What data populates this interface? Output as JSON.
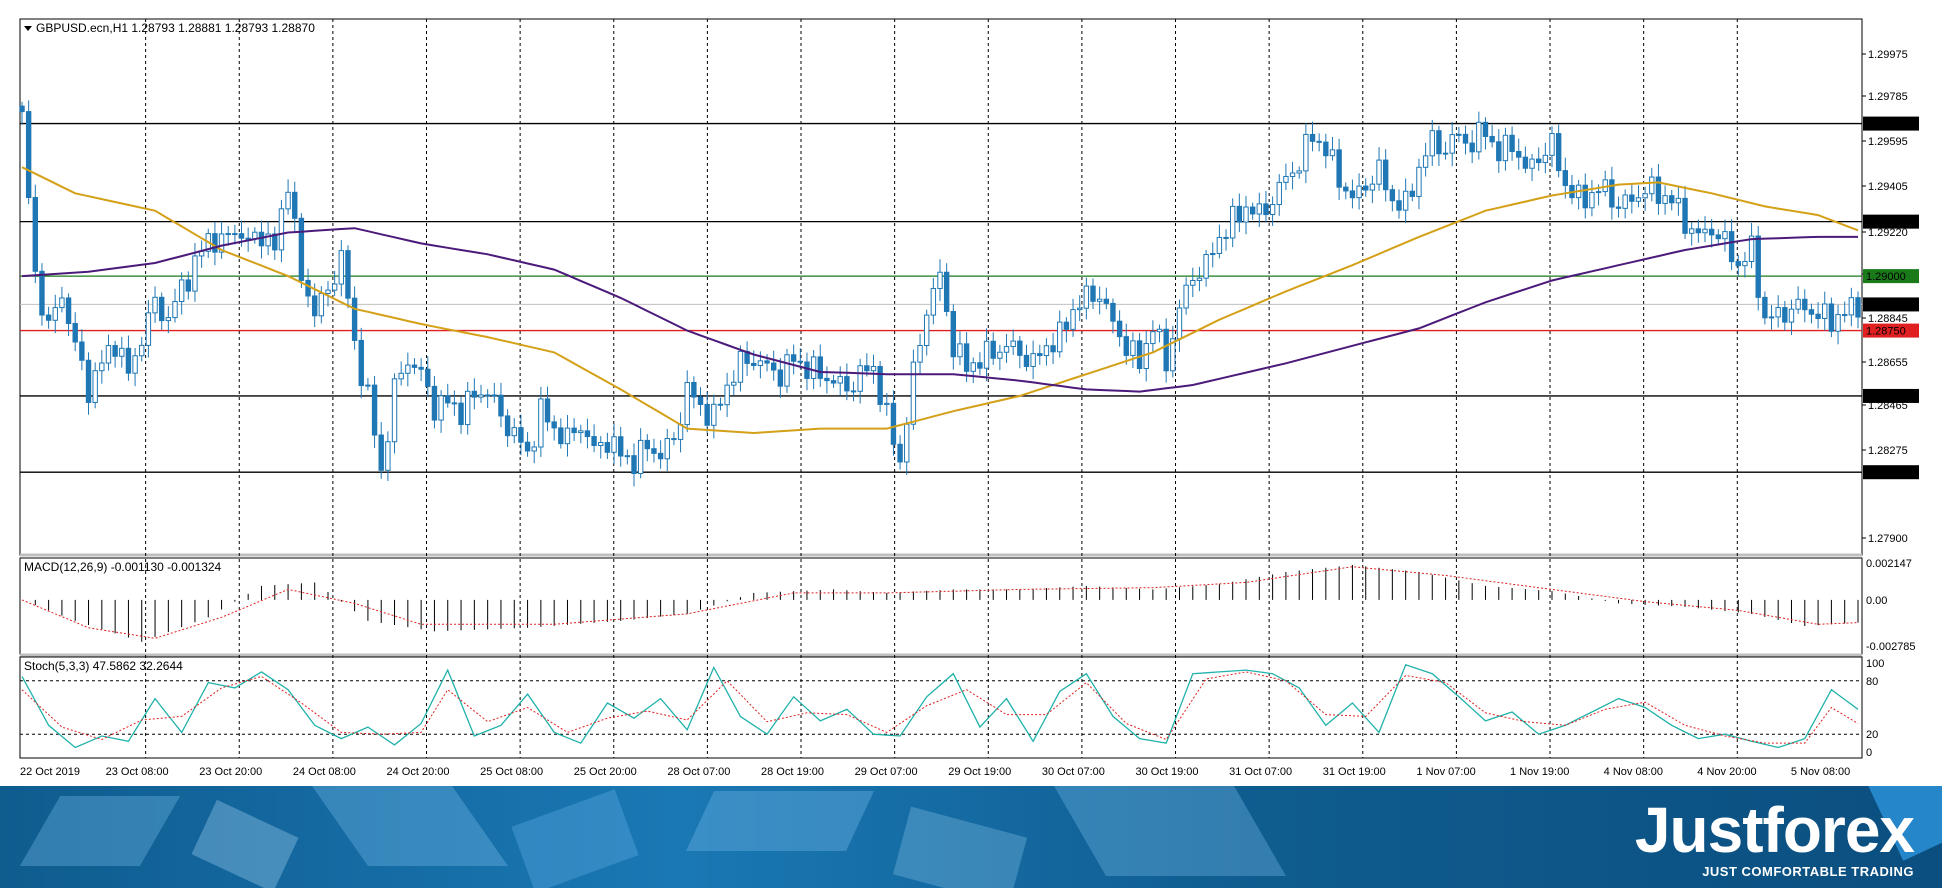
{
  "chart_data": {
    "type": "candlestick",
    "symbol_header": "GBPUSD.ecn,H1  1.28793 1.28881 1.28793 1.28870",
    "price_axis": {
      "ylim": [
        1.2772,
        1.3018
      ],
      "ticks": [
        "1.29975",
        "1.29785",
        "1.29595",
        "1.29405",
        "1.29220",
        "1.29030",
        "1.28845",
        "1.28655",
        "1.28465",
        "1.28275",
        "1.27900"
      ]
    },
    "horizontal_levels": [
      {
        "value": 1.297,
        "label": "1.29700",
        "color": "#000000"
      },
      {
        "value": 1.2925,
        "label": "1.29250",
        "color": "#000000"
      },
      {
        "value": 1.29,
        "label": "1.29000",
        "color": "#1a7a1a"
      },
      {
        "value": 1.2875,
        "label": "1.28750",
        "color": "#e02020"
      },
      {
        "value": 1.2845,
        "label": "1.28450",
        "color": "#000000"
      },
      {
        "value": 1.281,
        "label": "1.28100",
        "color": "#000000"
      }
    ],
    "current_price": {
      "value": 1.2887,
      "label": "1.28870"
    },
    "time_axis": [
      "22 Oct 2019",
      "23 Oct 08:00",
      "23 Oct 20:00",
      "24 Oct 08:00",
      "24 Oct 20:00",
      "25 Oct 08:00",
      "25 Oct 20:00",
      "28 Oct 07:00",
      "28 Oct 19:00",
      "29 Oct 07:00",
      "29 Oct 19:00",
      "30 Oct 07:00",
      "30 Oct 19:00",
      "31 Oct 07:00",
      "31 Oct 19:00",
      "1 Nov 07:00",
      "1 Nov 19:00",
      "4 Nov 08:00",
      "4 Nov 20:00",
      "5 Nov 08:00"
    ],
    "close_path": [
      [
        0,
        1.2972
      ],
      [
        2,
        1.29
      ],
      [
        4,
        1.2876
      ],
      [
        6,
        1.2892
      ],
      [
        8,
        1.2868
      ],
      [
        10,
        1.2848
      ],
      [
        12,
        1.286
      ],
      [
        14,
        1.287
      ],
      [
        16,
        1.2855
      ],
      [
        18,
        1.2872
      ],
      [
        20,
        1.2888
      ],
      [
        22,
        1.288
      ],
      [
        24,
        1.2895
      ],
      [
        26,
        1.2905
      ],
      [
        28,
        1.2918
      ],
      [
        30,
        1.2915
      ],
      [
        32,
        1.2922
      ],
      [
        34,
        1.2915
      ],
      [
        36,
        1.292
      ],
      [
        38,
        1.2912
      ],
      [
        40,
        1.2945
      ],
      [
        42,
        1.2898
      ],
      [
        44,
        1.2885
      ],
      [
        46,
        1.2892
      ],
      [
        48,
        1.291
      ],
      [
        50,
        1.2868
      ],
      [
        52,
        1.2845
      ],
      [
        54,
        1.281
      ],
      [
        56,
        1.2848
      ],
      [
        58,
        1.2862
      ],
      [
        60,
        1.2855
      ],
      [
        62,
        1.284
      ],
      [
        64,
        1.2842
      ],
      [
        66,
        1.2838
      ],
      [
        68,
        1.2845
      ],
      [
        70,
        1.2848
      ],
      [
        72,
        1.2835
      ],
      [
        74,
        1.2828
      ],
      [
        76,
        1.2818
      ],
      [
        78,
        1.2838
      ],
      [
        80,
        1.283
      ],
      [
        82,
        1.2825
      ],
      [
        84,
        1.2832
      ],
      [
        86,
        1.282
      ],
      [
        88,
        1.2825
      ],
      [
        90,
        1.2818
      ],
      [
        92,
        1.2815
      ],
      [
        94,
        1.2822
      ],
      [
        96,
        1.2818
      ],
      [
        98,
        1.2825
      ],
      [
        100,
        1.2848
      ],
      [
        102,
        1.284
      ],
      [
        104,
        1.2835
      ],
      [
        106,
        1.285
      ],
      [
        108,
        1.286
      ],
      [
        110,
        1.2862
      ],
      [
        112,
        1.2858
      ],
      [
        114,
        1.2855
      ],
      [
        116,
        1.2862
      ],
      [
        118,
        1.2858
      ],
      [
        120,
        1.2855
      ],
      [
        122,
        1.2852
      ],
      [
        124,
        1.2848
      ],
      [
        126,
        1.2855
      ],
      [
        128,
        1.2858
      ],
      [
        130,
        1.2835
      ],
      [
        132,
        1.2815
      ],
      [
        134,
        1.2855
      ],
      [
        136,
        1.2885
      ],
      [
        138,
        1.29
      ],
      [
        140,
        1.2868
      ],
      [
        142,
        1.2858
      ],
      [
        144,
        1.2862
      ],
      [
        146,
        1.2865
      ],
      [
        148,
        1.2868
      ],
      [
        150,
        1.2865
      ],
      [
        152,
        1.286
      ],
      [
        154,
        1.2868
      ],
      [
        156,
        1.2872
      ],
      [
        158,
        1.2885
      ],
      [
        160,
        1.289
      ],
      [
        162,
        1.2892
      ],
      [
        164,
        1.2878
      ],
      [
        166,
        1.2868
      ],
      [
        168,
        1.286
      ],
      [
        170,
        1.2878
      ],
      [
        172,
        1.286
      ],
      [
        174,
        1.2885
      ],
      [
        176,
        1.29
      ],
      [
        178,
        1.2905
      ],
      [
        180,
        1.2918
      ],
      [
        182,
        1.2925
      ],
      [
        184,
        1.2932
      ],
      [
        186,
        1.2928
      ],
      [
        188,
        1.2935
      ],
      [
        190,
        1.2945
      ],
      [
        192,
        1.2952
      ],
      [
        194,
        1.2965
      ],
      [
        196,
        1.2958
      ],
      [
        198,
        1.2945
      ],
      [
        200,
        1.2935
      ],
      [
        202,
        1.2942
      ],
      [
        204,
        1.2948
      ],
      [
        206,
        1.2935
      ],
      [
        208,
        1.2932
      ],
      [
        210,
        1.295
      ],
      [
        212,
        1.2962
      ],
      [
        214,
        1.2958
      ],
      [
        216,
        1.2965
      ],
      [
        218,
        1.296
      ],
      [
        220,
        1.2968
      ],
      [
        222,
        1.2955
      ],
      [
        224,
        1.2962
      ],
      [
        226,
        1.2948
      ],
      [
        228,
        1.2955
      ],
      [
        230,
        1.296
      ],
      [
        232,
        1.2942
      ],
      [
        234,
        1.2935
      ],
      [
        236,
        1.2938
      ],
      [
        238,
        1.294
      ],
      [
        240,
        1.2932
      ],
      [
        242,
        1.2935
      ],
      [
        244,
        1.294
      ],
      [
        246,
        1.2938
      ],
      [
        248,
        1.2935
      ],
      [
        250,
        1.2925
      ],
      [
        252,
        1.2918
      ],
      [
        254,
        1.2922
      ],
      [
        256,
        1.2915
      ],
      [
        258,
        1.2905
      ],
      [
        260,
        1.2912
      ],
      [
        262,
        1.288
      ],
      [
        264,
        1.2882
      ],
      [
        266,
        1.2885
      ],
      [
        268,
        1.2886
      ],
      [
        270,
        1.2882
      ],
      [
        272,
        1.288
      ],
      [
        274,
        1.2883
      ],
      [
        276,
        1.2887
      ]
    ],
    "ma_fast_points": [
      [
        0,
        1.295
      ],
      [
        8,
        1.2938
      ],
      [
        20,
        1.293
      ],
      [
        30,
        1.2912
      ],
      [
        40,
        1.29
      ],
      [
        50,
        1.2885
      ],
      [
        60,
        1.2878
      ],
      [
        70,
        1.2872
      ],
      [
        80,
        1.2865
      ],
      [
        90,
        1.2848
      ],
      [
        100,
        1.283
      ],
      [
        110,
        1.2828
      ],
      [
        120,
        1.283
      ],
      [
        130,
        1.283
      ],
      [
        140,
        1.2838
      ],
      [
        150,
        1.2845
      ],
      [
        160,
        1.2855
      ],
      [
        170,
        1.2865
      ],
      [
        180,
        1.288
      ],
      [
        190,
        1.2893
      ],
      [
        200,
        1.2905
      ],
      [
        210,
        1.2918
      ],
      [
        220,
        1.293
      ],
      [
        230,
        1.2937
      ],
      [
        240,
        1.2942
      ],
      [
        246,
        1.2943
      ],
      [
        254,
        1.2938
      ],
      [
        262,
        1.2932
      ],
      [
        270,
        1.2928
      ],
      [
        276,
        1.2921
      ]
    ],
    "ma_slow_points": [
      [
        0,
        1.29
      ],
      [
        10,
        1.2902
      ],
      [
        20,
        1.2906
      ],
      [
        30,
        1.2914
      ],
      [
        40,
        1.292
      ],
      [
        50,
        1.2922
      ],
      [
        60,
        1.2915
      ],
      [
        70,
        1.291
      ],
      [
        80,
        1.2903
      ],
      [
        90,
        1.289
      ],
      [
        100,
        1.2875
      ],
      [
        110,
        1.2864
      ],
      [
        120,
        1.2856
      ],
      [
        130,
        1.2855
      ],
      [
        140,
        1.2855
      ],
      [
        150,
        1.2852
      ],
      [
        160,
        1.2848
      ],
      [
        168,
        1.2847
      ],
      [
        176,
        1.285
      ],
      [
        190,
        1.286
      ],
      [
        200,
        1.2868
      ],
      [
        210,
        1.2876
      ],
      [
        220,
        1.2888
      ],
      [
        230,
        1.2898
      ],
      [
        240,
        1.2905
      ],
      [
        250,
        1.2912
      ],
      [
        260,
        1.2917
      ],
      [
        270,
        1.2918
      ],
      [
        276,
        1.2918
      ]
    ],
    "macd": {
      "label": "MACD(12,26,9) -0.001130 -0.001324",
      "ticks": [
        "0.002147",
        "0.00",
        "-0.002785"
      ],
      "ylim": [
        -0.0031,
        0.0024
      ],
      "hist_points": [
        [
          0,
          0.0
        ],
        [
          8,
          -0.0012
        ],
        [
          18,
          -0.0024
        ],
        [
          28,
          -0.001
        ],
        [
          36,
          0.0008
        ],
        [
          44,
          0.001
        ],
        [
          52,
          -0.0012
        ],
        [
          62,
          -0.0018
        ],
        [
          76,
          -0.0016
        ],
        [
          90,
          -0.0012
        ],
        [
          100,
          -0.0008
        ],
        [
          110,
          0.0004
        ],
        [
          122,
          0.0006
        ],
        [
          130,
          0.0004
        ],
        [
          140,
          0.0006
        ],
        [
          150,
          0.0006
        ],
        [
          160,
          0.0008
        ],
        [
          170,
          0.0006
        ],
        [
          180,
          0.0009
        ],
        [
          190,
          0.0016
        ],
        [
          200,
          0.002
        ],
        [
          210,
          0.0016
        ],
        [
          220,
          0.0008
        ],
        [
          230,
          0.0005
        ],
        [
          240,
          -0.0002
        ],
        [
          250,
          -0.0004
        ],
        [
          260,
          -0.0008
        ],
        [
          268,
          -0.0015
        ],
        [
          276,
          -0.0013
        ]
      ],
      "signal_points": [
        [
          0,
          0.0
        ],
        [
          10,
          -0.0016
        ],
        [
          20,
          -0.0022
        ],
        [
          30,
          -0.001
        ],
        [
          40,
          0.0006
        ],
        [
          50,
          -0.0002
        ],
        [
          60,
          -0.0014
        ],
        [
          80,
          -0.0014
        ],
        [
          100,
          -0.0008
        ],
        [
          116,
          0.0004
        ],
        [
          130,
          0.0004
        ],
        [
          150,
          0.0006
        ],
        [
          170,
          0.0007
        ],
        [
          184,
          0.001
        ],
        [
          200,
          0.0019
        ],
        [
          214,
          0.0014
        ],
        [
          230,
          0.0006
        ],
        [
          244,
          -0.0001
        ],
        [
          258,
          -0.0006
        ],
        [
          270,
          -0.0014
        ],
        [
          276,
          -0.0013
        ]
      ]
    },
    "stoch": {
      "label": "Stoch(5,3,3) 47.5862 32.2644",
      "ticks": [
        "100",
        "80",
        "20",
        "0"
      ],
      "ylim": [
        0,
        100
      ],
      "k_points": [
        [
          0,
          85
        ],
        [
          4,
          30
        ],
        [
          8,
          5
        ],
        [
          12,
          18
        ],
        [
          16,
          12
        ],
        [
          20,
          60
        ],
        [
          24,
          22
        ],
        [
          28,
          78
        ],
        [
          32,
          72
        ],
        [
          36,
          90
        ],
        [
          40,
          70
        ],
        [
          44,
          30
        ],
        [
          48,
          15
        ],
        [
          52,
          28
        ],
        [
          56,
          8
        ],
        [
          60,
          32
        ],
        [
          64,
          92
        ],
        [
          68,
          18
        ],
        [
          72,
          30
        ],
        [
          76,
          65
        ],
        [
          80,
          22
        ],
        [
          84,
          10
        ],
        [
          88,
          55
        ],
        [
          92,
          38
        ],
        [
          96,
          60
        ],
        [
          100,
          25
        ],
        [
          104,
          95
        ],
        [
          108,
          40
        ],
        [
          112,
          20
        ],
        [
          116,
          62
        ],
        [
          120,
          35
        ],
        [
          124,
          48
        ],
        [
          128,
          20
        ],
        [
          132,
          18
        ],
        [
          136,
          62
        ],
        [
          140,
          88
        ],
        [
          144,
          28
        ],
        [
          148,
          60
        ],
        [
          152,
          12
        ],
        [
          156,
          68
        ],
        [
          160,
          88
        ],
        [
          164,
          40
        ],
        [
          168,
          15
        ],
        [
          172,
          10
        ],
        [
          176,
          88
        ],
        [
          180,
          90
        ],
        [
          184,
          92
        ],
        [
          188,
          88
        ],
        [
          192,
          72
        ],
        [
          196,
          30
        ],
        [
          200,
          55
        ],
        [
          204,
          22
        ],
        [
          208,
          98
        ],
        [
          212,
          88
        ],
        [
          216,
          62
        ],
        [
          220,
          35
        ],
        [
          224,
          45
        ],
        [
          228,
          20
        ],
        [
          232,
          30
        ],
        [
          236,
          45
        ],
        [
          240,
          60
        ],
        [
          244,
          50
        ],
        [
          248,
          30
        ],
        [
          252,
          15
        ],
        [
          256,
          20
        ],
        [
          260,
          12
        ],
        [
          264,
          5
        ],
        [
          268,
          15
        ],
        [
          272,
          70
        ],
        [
          276,
          48
        ]
      ],
      "d_points": [
        [
          0,
          70
        ],
        [
          6,
          28
        ],
        [
          12,
          14
        ],
        [
          18,
          36
        ],
        [
          24,
          40
        ],
        [
          30,
          72
        ],
        [
          36,
          85
        ],
        [
          42,
          55
        ],
        [
          48,
          22
        ],
        [
          54,
          20
        ],
        [
          60,
          22
        ],
        [
          64,
          70
        ],
        [
          70,
          34
        ],
        [
          76,
          50
        ],
        [
          82,
          22
        ],
        [
          88,
          38
        ],
        [
          94,
          46
        ],
        [
          100,
          36
        ],
        [
          106,
          80
        ],
        [
          112,
          34
        ],
        [
          118,
          44
        ],
        [
          124,
          42
        ],
        [
          130,
          22
        ],
        [
          136,
          52
        ],
        [
          142,
          70
        ],
        [
          148,
          42
        ],
        [
          154,
          42
        ],
        [
          160,
          78
        ],
        [
          166,
          32
        ],
        [
          172,
          14
        ],
        [
          178,
          82
        ],
        [
          184,
          90
        ],
        [
          190,
          80
        ],
        [
          196,
          42
        ],
        [
          202,
          40
        ],
        [
          208,
          86
        ],
        [
          214,
          78
        ],
        [
          220,
          44
        ],
        [
          226,
          34
        ],
        [
          232,
          30
        ],
        [
          238,
          48
        ],
        [
          244,
          56
        ],
        [
          250,
          30
        ],
        [
          256,
          18
        ],
        [
          262,
          10
        ],
        [
          268,
          10
        ],
        [
          272,
          50
        ],
        [
          276,
          32
        ]
      ]
    }
  },
  "branding": {
    "logo": "Justforex",
    "tagline": "JUST COMFORTABLE TRADING"
  }
}
